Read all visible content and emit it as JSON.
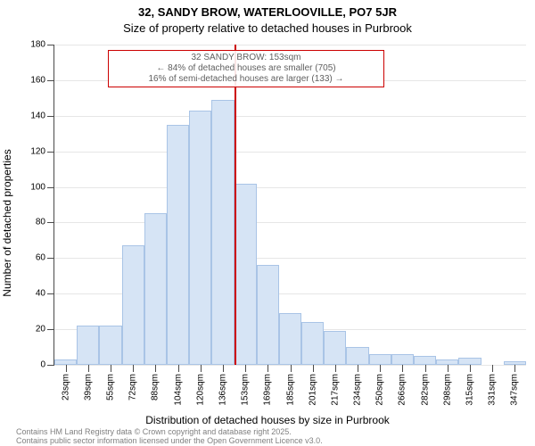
{
  "title_line1": "32, SANDY BROW, WATERLOOVILLE, PO7 5JR",
  "title_line2": "Size of property relative to detached houses in Purbrook",
  "title_fontsize": 13,
  "ylabel": "Number of detached properties",
  "xlabel": "Distribution of detached houses by size in Purbrook",
  "axis_label_fontsize": 12,
  "footnote_line1": "Contains HM Land Registry data © Crown copyright and database right 2025.",
  "footnote_line2": "Contains public sector information licensed under the Open Government Licence v3.0.",
  "footnote_fontsize": 9,
  "chart": {
    "type": "histogram",
    "background_color": "#ffffff",
    "axis_color": "#4a4a4a",
    "grid_color": "#e6e6e6",
    "tick_fontsize": 10,
    "bars": {
      "fill": "#d6e4f5",
      "stroke": "#a9c4e6",
      "categories": [
        "23sqm",
        "39sqm",
        "55sqm",
        "72sqm",
        "88sqm",
        "104sqm",
        "120sqm",
        "136sqm",
        "153sqm",
        "169sqm",
        "185sqm",
        "201sqm",
        "217sqm",
        "234sqm",
        "250sqm",
        "266sqm",
        "282sqm",
        "298sqm",
        "315sqm",
        "331sqm",
        "347sqm"
      ],
      "values": [
        3,
        22,
        22,
        67,
        85,
        135,
        143,
        149,
        102,
        56,
        29,
        24,
        19,
        10,
        6,
        6,
        5,
        3,
        4,
        0,
        2
      ]
    },
    "ylim": [
      0,
      180
    ],
    "ytick_step": 20,
    "reference": {
      "index": 8,
      "color": "#cc0000"
    },
    "annotation": {
      "border_color": "#cc0000",
      "text_color": "#606060",
      "fontsize": 10,
      "line1": "32 SANDY BROW: 153sqm",
      "line2": "← 84% of detached houses are smaller (705)",
      "line3": "16% of semi-detached houses are larger (133) →"
    }
  }
}
